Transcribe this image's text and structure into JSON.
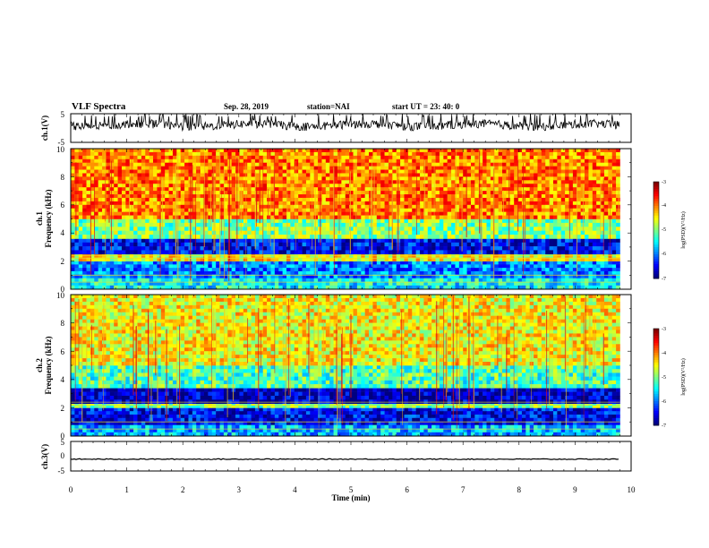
{
  "header": {
    "title": "VLF Spectra",
    "date": "Sep. 28, 2019",
    "station": "station=NAI",
    "start": "start  UT =   23: 40: 0"
  },
  "colors": {
    "spectrum_low": "#00008c",
    "spectrum_mid": "#19e019",
    "spectrum_high": "#e00000",
    "waveform": "#000000"
  },
  "chart_data": [
    {
      "type": "line",
      "name": "ch1-waveform",
      "ylabel": "ch.1(V)",
      "ylim": [
        -5,
        5
      ],
      "yticks": [
        "5",
        "-5"
      ],
      "xlim": [
        0,
        10
      ],
      "description_values": {
        "typical_range": [
          -1,
          3
        ]
      }
    },
    {
      "type": "heatmap",
      "name": "ch1-spectrogram",
      "ylabel": "ch.1\nFrequency (kHz)",
      "ylabel_line1": "ch.1",
      "ylabel_line2": "Frequency (kHz)",
      "xlim": [
        0,
        9.8
      ],
      "ylim": [
        0,
        10
      ],
      "yticks": [
        "0",
        "2",
        "4",
        "6",
        "8",
        "10"
      ],
      "colorbar": {
        "label": "log(PSD)(V²/Hz)",
        "range": [
          -7,
          -3
        ],
        "ticks": [
          "-3",
          "-4",
          "-5",
          "-6",
          "-7"
        ]
      },
      "bands": [
        {
          "freq_khz": [
            0,
            0.8
          ],
          "log_psd": -5.5
        },
        {
          "freq_khz": [
            0.8,
            2.0
          ],
          "log_psd": -6.0
        },
        {
          "freq_khz": [
            2.0,
            2.5
          ],
          "log_psd": -4.5
        },
        {
          "freq_khz": [
            2.5,
            3.6
          ],
          "log_psd": -6.5
        },
        {
          "freq_khz": [
            3.6,
            5.0
          ],
          "log_psd": -5.0
        },
        {
          "freq_khz": [
            5.0,
            10.0
          ],
          "log_psd": -4.0
        }
      ]
    },
    {
      "type": "heatmap",
      "name": "ch2-spectrogram",
      "ylabel": "ch.2\nFrequency (kHz)",
      "ylabel_line1": "ch.2",
      "ylabel_line2": "Frequency (kHz)",
      "xlim": [
        0,
        9.8
      ],
      "ylim": [
        0,
        10
      ],
      "yticks": [
        "0",
        "2",
        "4",
        "6",
        "8",
        "10"
      ],
      "colorbar": {
        "label": "log(PSD)(V²/Hz)",
        "range": [
          -7,
          -3
        ],
        "ticks": [
          "-3",
          "-4",
          "-5",
          "-6",
          "-7"
        ]
      },
      "bands": [
        {
          "freq_khz": [
            0,
            0.8
          ],
          "log_psd": -5.8
        },
        {
          "freq_khz": [
            0.8,
            2.0
          ],
          "log_psd": -6.5
        },
        {
          "freq_khz": [
            2.0,
            2.3
          ],
          "log_psd": -5.0
        },
        {
          "freq_khz": [
            2.3,
            3.4
          ],
          "log_psd": -6.8
        },
        {
          "freq_khz": [
            3.4,
            5.0
          ],
          "log_psd": -5.2
        },
        {
          "freq_khz": [
            5.0,
            10.0
          ],
          "log_psd": -4.5
        }
      ]
    },
    {
      "type": "line",
      "name": "ch3-waveform",
      "ylabel": "ch.3(V)",
      "ylim": [
        -5,
        5
      ],
      "yticks": [
        "5",
        "0",
        "-5"
      ],
      "xlim": [
        0,
        10
      ],
      "description_values": {
        "level": -1
      }
    }
  ],
  "xaxis": {
    "label": "Time (min)",
    "ticks": [
      "0",
      "1",
      "2",
      "3",
      "4",
      "5",
      "6",
      "7",
      "8",
      "9",
      "10"
    ]
  }
}
